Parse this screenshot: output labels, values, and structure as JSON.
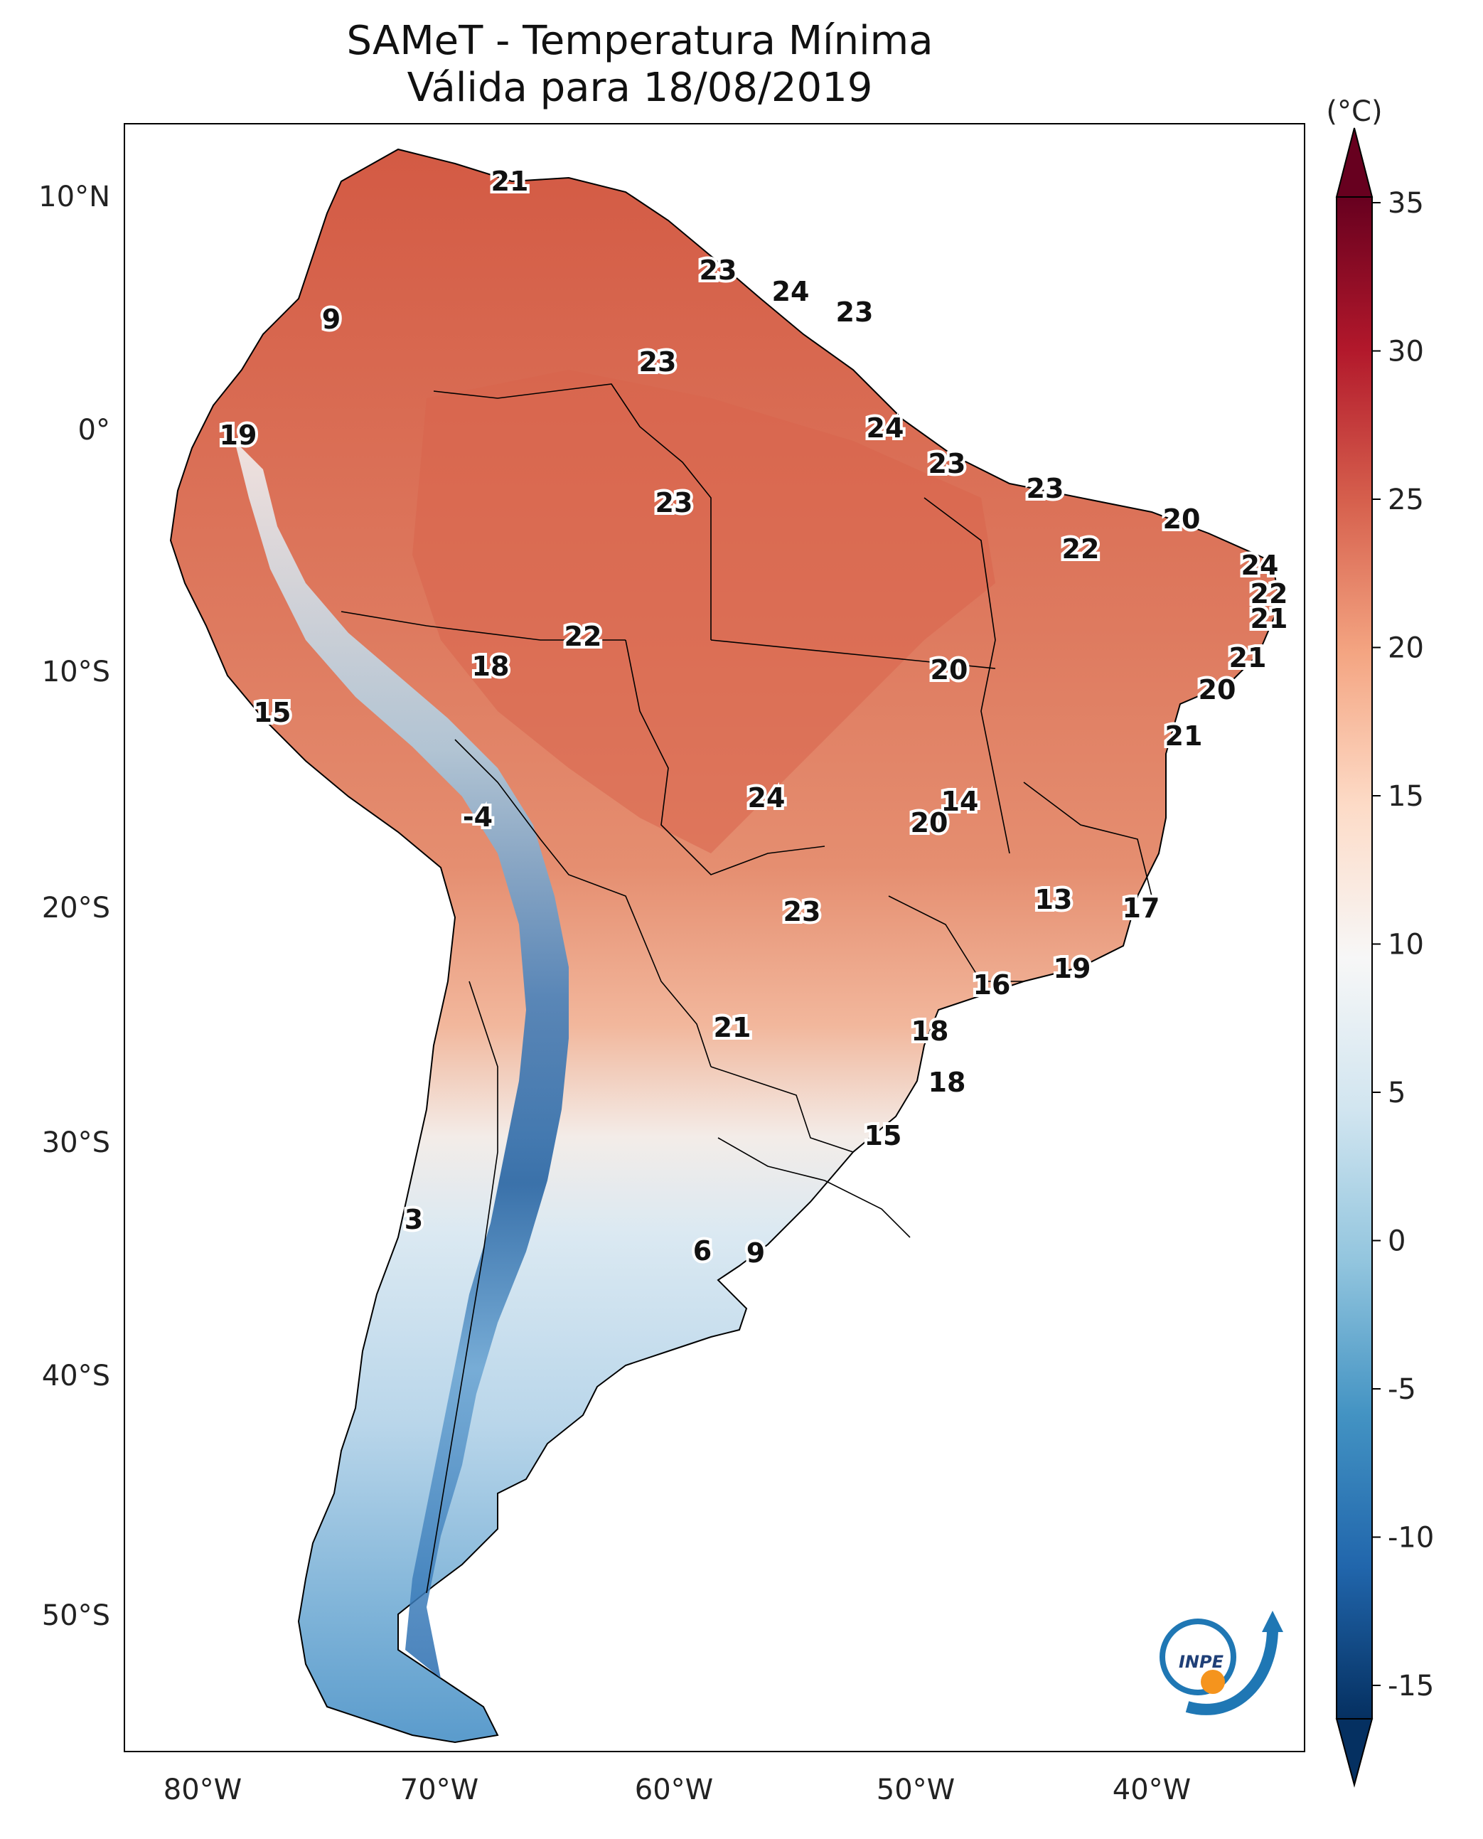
{
  "title": {
    "line1": "SAMeT - Temperatura Mínima",
    "line2": "Válida para 18/08/2019"
  },
  "axes": {
    "lat_ticks": [
      "10°N",
      "0°",
      "10°S",
      "20°S",
      "30°S",
      "40°S",
      "50°S"
    ],
    "lon_ticks": [
      "80°W",
      "70°W",
      "60°W",
      "50°W",
      "40°W"
    ]
  },
  "colorbar": {
    "unit": "(°C)",
    "ticks": [
      "35",
      "30",
      "25",
      "20",
      "15",
      "10",
      "5",
      "0",
      "-5",
      "-10",
      "-15"
    ],
    "range": [
      -15,
      35
    ],
    "colormap": "RdBu_r",
    "colors": {
      "dark_red": "#67001f",
      "red": "#b2182b",
      "orange_red": "#d6604d",
      "salmon": "#f4a582",
      "pale": "#fddbc7",
      "white": "#f7f7f7",
      "pale_blue": "#d1e5f0",
      "light_blue": "#92c5de",
      "mid_blue": "#4393c3",
      "blue": "#2166ac",
      "dark_blue": "#053061"
    }
  },
  "labels": [
    {
      "name": "label-21-north",
      "text": "21"
    },
    {
      "name": "label-23-guyana",
      "text": "23"
    },
    {
      "name": "label-24-suriname",
      "text": "24"
    },
    {
      "name": "label-23-guiana",
      "text": "23"
    },
    {
      "name": "label-9-colombia",
      "text": "9"
    },
    {
      "name": "label-23-roraima",
      "text": "23"
    },
    {
      "name": "label-19-ecuador",
      "text": "19"
    },
    {
      "name": "label-24-amapa",
      "text": "24"
    },
    {
      "name": "label-23-para-north",
      "text": "23"
    },
    {
      "name": "label-23-maranhao",
      "text": "23"
    },
    {
      "name": "label-23-amazonas",
      "text": "23"
    },
    {
      "name": "label-20-ceara",
      "text": "20"
    },
    {
      "name": "label-22-piaui",
      "text": "22"
    },
    {
      "name": "label-24-rn",
      "text": "24"
    },
    {
      "name": "label-22-pb",
      "text": "22"
    },
    {
      "name": "label-21-pe",
      "text": "21"
    },
    {
      "name": "label-22-rondonia",
      "text": "22"
    },
    {
      "name": "label-18-acre",
      "text": "18"
    },
    {
      "name": "label-20-tocantins",
      "text": "20"
    },
    {
      "name": "label-21-al",
      "text": "21"
    },
    {
      "name": "label-20-se",
      "text": "20"
    },
    {
      "name": "label-21-ba",
      "text": "21"
    },
    {
      "name": "label-15-peru",
      "text": "15"
    },
    {
      "name": "label-24-mt",
      "text": "24"
    },
    {
      "name": "label-14-go",
      "text": "14"
    },
    {
      "name": "label-20-df",
      "text": "20"
    },
    {
      "name": "label-minus4-bolivia",
      "text": "-4"
    },
    {
      "name": "label-13-mg",
      "text": "13"
    },
    {
      "name": "label-17-es",
      "text": "17"
    },
    {
      "name": "label-23-ms",
      "text": "23"
    },
    {
      "name": "label-19-rj",
      "text": "19"
    },
    {
      "name": "label-16-sp",
      "text": "16"
    },
    {
      "name": "label-21-paraguay",
      "text": "21"
    },
    {
      "name": "label-18-pr",
      "text": "18"
    },
    {
      "name": "label-18-sc",
      "text": "18"
    },
    {
      "name": "label-15-rs",
      "text": "15"
    },
    {
      "name": "label-3-chile",
      "text": "3"
    },
    {
      "name": "label-6-buenos-aires",
      "text": "6"
    },
    {
      "name": "label-9-montevideo",
      "text": "9"
    }
  ],
  "logo": {
    "text": "INPE",
    "colors": {
      "blue": "#1f77b4",
      "orange": "#f5941d"
    }
  }
}
